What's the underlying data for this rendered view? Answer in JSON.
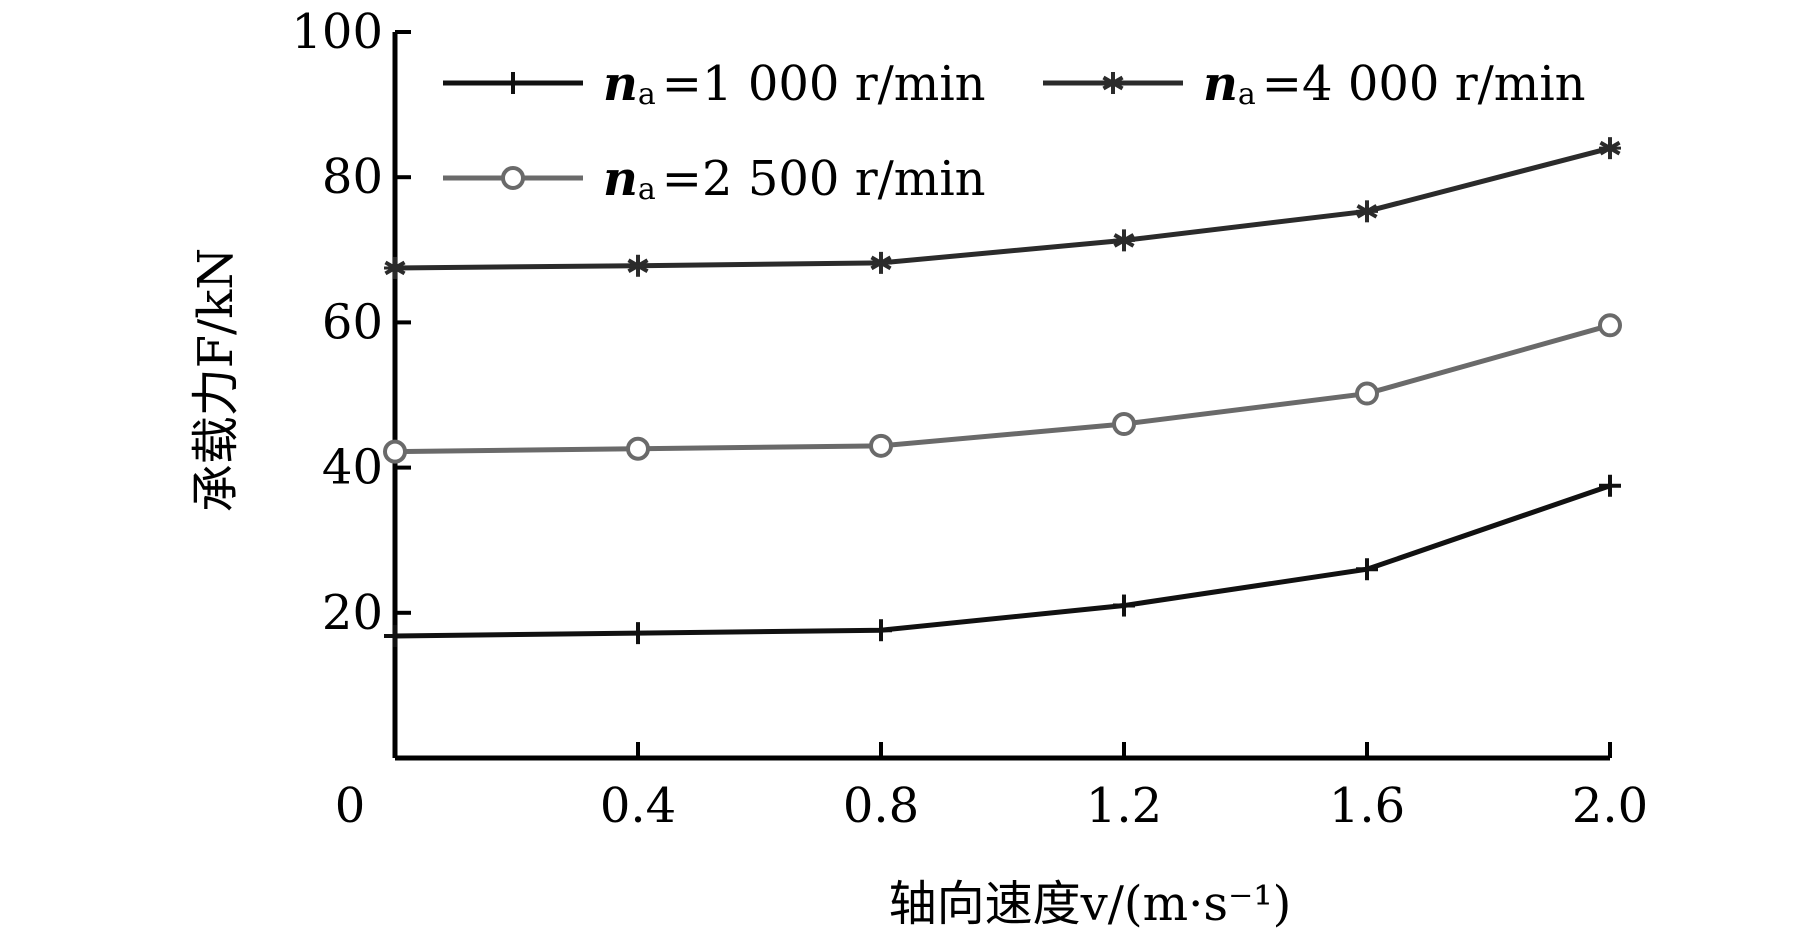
{
  "chart_data": {
    "type": "line",
    "xlabel": "轴向速度v/(m·s⁻¹)",
    "ylabel": "承载力F/kN",
    "xlim": [
      0,
      2.0
    ],
    "ylim": [
      0,
      100
    ],
    "x_origin_label": "0",
    "x_ticks": [
      0.4,
      0.8,
      1.2,
      1.6,
      2.0
    ],
    "x_tick_labels": [
      "0.4",
      "0.8",
      "1.2",
      "1.6",
      "2.0"
    ],
    "y_ticks": [
      20,
      40,
      60,
      80,
      100
    ],
    "y_tick_labels": [
      "20",
      "40",
      "60",
      "80",
      "100"
    ],
    "grid": false,
    "legend_position": "top",
    "x": [
      0,
      0.4,
      0.8,
      1.2,
      1.6,
      2.0
    ],
    "series": [
      {
        "name": "na=1 000 r/min",
        "legend_var": "n",
        "legend_sub": "a",
        "legend_value": "=1 000 r/min",
        "marker": "plus",
        "color": "#111111",
        "values": [
          16.8,
          17.2,
          17.6,
          21.0,
          26.0,
          37.5
        ]
      },
      {
        "name": "na=4 000 r/min",
        "legend_var": "n",
        "legend_sub": "a",
        "legend_value": "=4 000 r/min",
        "marker": "asterisk",
        "color": "#2b2b2b",
        "values": [
          67.5,
          67.8,
          68.2,
          71.3,
          75.3,
          84.0
        ]
      },
      {
        "name": "na=2 500 r/min",
        "legend_var": "n",
        "legend_sub": "a",
        "legend_value": "=2 500 r/min",
        "marker": "circle",
        "color": "#6a6a6a",
        "values": [
          42.2,
          42.6,
          43.0,
          46.0,
          50.2,
          59.6
        ]
      }
    ]
  }
}
